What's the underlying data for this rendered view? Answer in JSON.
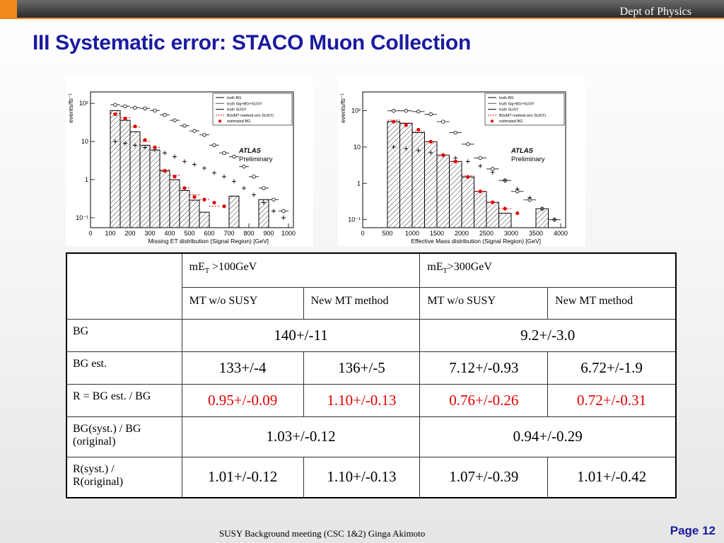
{
  "header": {
    "dept": "Dept of Physics",
    "title": "III Systematic error: STACO Muon Collection"
  },
  "plots": [
    {
      "type": "histogram",
      "log_y": true,
      "y_label": "events/fb⁻¹",
      "x_label": "Missing  ET distribution (Signal Region) [GeV]",
      "annotation": [
        "ATLAS",
        "Preliminary"
      ],
      "xlim": [
        0,
        1025
      ],
      "xticks": [
        0,
        100,
        200,
        300,
        400,
        500,
        600,
        700,
        800,
        900,
        1000
      ],
      "ylim": [
        0.055,
        200
      ],
      "yticks": [
        {
          "value": 0.1,
          "label": "10⁻¹"
        },
        1,
        10,
        {
          "value": 100,
          "label": "10²"
        }
      ],
      "bins": [
        100,
        150,
        200,
        250,
        300,
        350,
        400,
        450,
        500,
        550,
        600,
        650,
        700,
        750,
        800,
        850,
        900,
        950,
        1000
      ],
      "series": [
        {
          "name": "truth BG",
          "style": "hatched",
          "color": "#000000",
          "values": [
            65,
            36,
            18,
            8,
            6,
            1.7,
            1.0,
            0.52,
            0.29,
            0.14,
            null,
            null,
            0.37,
            null,
            null,
            0.3,
            null,
            null
          ]
        },
        {
          "name": "truth Sig+BG+SUSY",
          "style": "line",
          "color": "#555555",
          "values": [
            92,
            84,
            77,
            74,
            65,
            50,
            36,
            26,
            19,
            15,
            8,
            5,
            4,
            2.2,
            1.2,
            0.6,
            0.3,
            0.15
          ]
        },
        {
          "name": "truth SUSY",
          "style": "cross",
          "color": "#000000",
          "values": [
            10,
            9,
            8,
            7,
            6,
            5,
            4,
            3,
            2.5,
            2,
            1.5,
            1.2,
            0.9,
            0.6,
            0.4,
            0.25,
            0.15,
            0.1
          ]
        },
        {
          "name": "BG(MT method w/o SUSY)",
          "style": "dashed",
          "color": "#e00000",
          "values": [
            55,
            42,
            24,
            10,
            7,
            1.8,
            1.3,
            0.6,
            0.4,
            0.3,
            0.2,
            null,
            null,
            null,
            null,
            null,
            null,
            null
          ]
        },
        {
          "name": "estimated BG",
          "style": "points",
          "color": "#e00000",
          "values": [
            52,
            40,
            25,
            11,
            7,
            1.7,
            1.2,
            0.6,
            0.35,
            0.3,
            0.25,
            0.2,
            null,
            null,
            null,
            null,
            null,
            null
          ]
        }
      ]
    },
    {
      "type": "histogram",
      "log_y": true,
      "y_label": "events/fb⁻¹",
      "x_label": "Effective  Mass  distribution (Signal Region) [GeV]",
      "annotation": [
        "ATLAS",
        "Preliminary"
      ],
      "xlim": [
        0,
        4100
      ],
      "xticks": [
        0,
        500,
        1000,
        1500,
        2000,
        2500,
        3000,
        3500,
        4000
      ],
      "ylim": [
        0.06,
        330
      ],
      "yticks": [
        {
          "value": 0.1,
          "label": "10⁻¹"
        },
        1,
        10,
        {
          "value": 100,
          "label": "10²"
        }
      ],
      "bins": [
        500,
        750,
        1000,
        1250,
        1500,
        1750,
        2000,
        2250,
        2500,
        2750,
        3000,
        3250,
        3500,
        3750,
        4000
      ],
      "series": [
        {
          "name": "truth BG",
          "style": "hatched",
          "color": "#000000",
          "values": [
            50,
            45,
            25,
            14,
            6,
            4,
            1.5,
            0.6,
            0.3,
            0.15,
            null,
            null,
            0.2,
            null
          ]
        },
        {
          "name": "truth Sig+BG+SUSY",
          "style": "line",
          "color": "#555555",
          "values": [
            100,
            100,
            95,
            80,
            50,
            25,
            12,
            5,
            2.5,
            1.2,
            0.6,
            0.35,
            0.2,
            0.1
          ]
        },
        {
          "name": "truth SUSY",
          "style": "cross",
          "color": "#000000",
          "values": [
            10,
            9,
            8,
            7,
            6,
            5,
            4,
            3,
            2,
            1.2,
            0.7,
            0.4,
            0.2,
            0.1
          ]
        },
        {
          "name": "BG(MT method w/o SUSY)",
          "style": "dashed",
          "color": "#e00000",
          "values": [
            55,
            46,
            27,
            14,
            6,
            4,
            1.6,
            0.6,
            0.3,
            0.2,
            null,
            null,
            null,
            null
          ]
        },
        {
          "name": "estimated BG",
          "style": "points",
          "color": "#e00000",
          "values": [
            50,
            40,
            30,
            14,
            6,
            4,
            1.5,
            0.6,
            0.3,
            0.2,
            0.15,
            null,
            null,
            null
          ]
        }
      ]
    }
  ],
  "table": {
    "groups": [
      {
        "prefix": "mE",
        "sub": "T",
        "suffix": " >100GeV"
      },
      {
        "prefix": "mE",
        "sub": "T",
        "suffix": ">300GeV"
      }
    ],
    "methods": [
      "MT w/o SUSY",
      "New MT method",
      "MT w/o SUSY",
      "New MT method"
    ],
    "rows": [
      {
        "label": [
          "BG"
        ],
        "cells": [
          "140+/-11",
          "9.2+/-3.0"
        ]
      },
      {
        "label": [
          "BG est."
        ],
        "cells": [
          "133+/-4",
          "136+/-5",
          "7.12+/-0.93",
          "6.72+/-1.9"
        ]
      },
      {
        "label": [
          "R = BG est. / BG"
        ],
        "color": "#e00000",
        "cells": [
          "0.95+/-0.09",
          "1.10+/-0.13",
          "0.76+/-0.26",
          "0.72+/-0.31"
        ]
      },
      {
        "label": [
          "BG(syst.) / BG",
          "(original)"
        ],
        "cells": [
          "1.03+/-0.12",
          "0.94+/-0.29"
        ]
      },
      {
        "label": [
          "R(syst.) /",
          "R(original)"
        ],
        "cells": [
          "1.01+/-0.12",
          "1.10+/-0.13",
          "1.07+/-0.39",
          "1.01+/-0.42"
        ]
      }
    ]
  },
  "footer": {
    "meeting": "SUSY Background meeting  (CSC 1&2) Ginga Akimoto",
    "page": "Page 12"
  }
}
